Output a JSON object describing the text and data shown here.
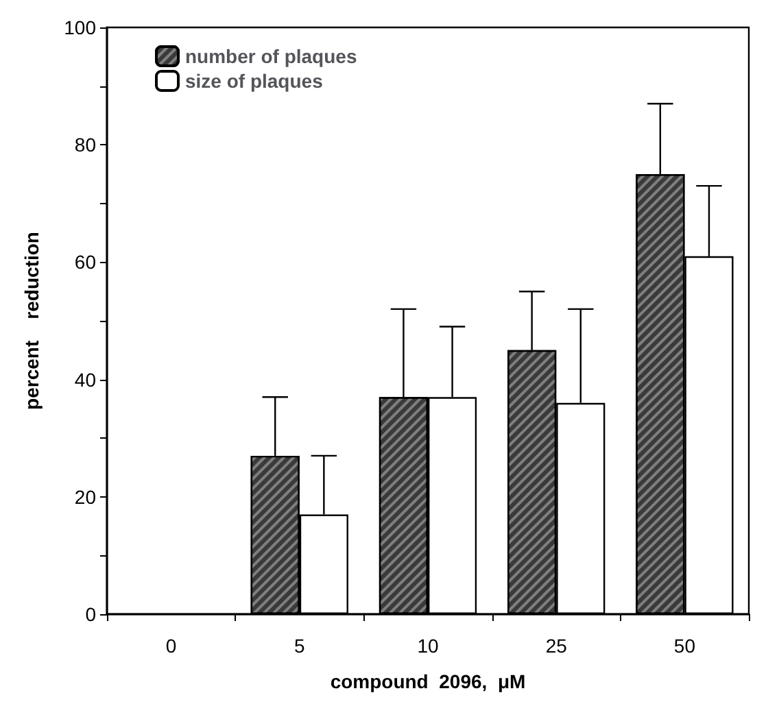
{
  "chart_data": {
    "type": "bar",
    "xlabel": "compound  2096,  μM",
    "ylabel": "percent    reduction",
    "categories": [
      "0",
      "5",
      "10",
      "25",
      "50"
    ],
    "series": [
      {
        "name": "number of plaques",
        "color": "#3a3a3a",
        "values": [
          null,
          27,
          37,
          45,
          75
        ],
        "errors": [
          null,
          [
            27,
            37
          ],
          [
            37,
            52
          ],
          [
            45,
            55
          ],
          [
            75,
            87
          ]
        ]
      },
      {
        "name": "size of plaques",
        "color": "#ffffff",
        "values": [
          null,
          17,
          37,
          36,
          61
        ],
        "errors": [
          null,
          [
            17,
            27
          ],
          [
            37,
            49
          ],
          [
            36,
            52
          ],
          [
            61,
            73
          ]
        ]
      }
    ],
    "ylim": [
      0,
      100
    ],
    "yticks": [
      0,
      {
        "value": 10,
        "label": null
      },
      20,
      {
        "value": 30,
        "label": null
      },
      40,
      {
        "value": 50,
        "label": null
      },
      60,
      {
        "value": 70,
        "label": null
      },
      80,
      {
        "value": 90,
        "label": null
      },
      100
    ],
    "legend": "top left",
    "grid": false
  }
}
